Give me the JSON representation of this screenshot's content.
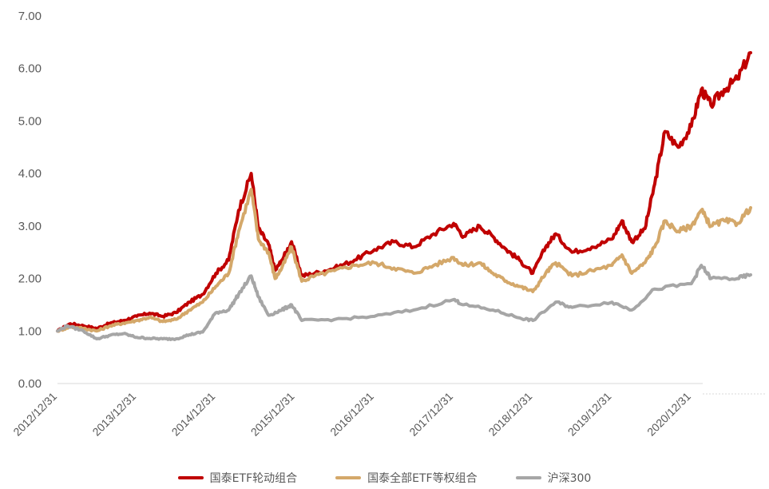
{
  "chart_data": {
    "type": "line",
    "yticks": [
      "0.00",
      "1.00",
      "2.00",
      "3.00",
      "4.00",
      "5.00",
      "6.00",
      "7.00"
    ],
    "ylim": [
      0,
      7
    ],
    "xticks": [
      "2012/12/31",
      "2013/12/31",
      "2014/12/31",
      "2015/12/31",
      "2016/12/31",
      "2017/12/31",
      "2018/12/31",
      "2019/12/31",
      "2020/12/31"
    ],
    "xlim": [
      "2012/12/31",
      "2021/09/30"
    ],
    "grid": false,
    "legend_position": "bottom",
    "series": [
      {
        "name": "国泰ETF轮动组合",
        "color": "#c00000",
        "points": [
          [
            "2012/12/31",
            1.0
          ],
          [
            "2013/02/28",
            1.14
          ],
          [
            "2013/04/30",
            1.1
          ],
          [
            "2013/06/30",
            1.05
          ],
          [
            "2013/08/31",
            1.15
          ],
          [
            "2013/10/31",
            1.2
          ],
          [
            "2013/12/31",
            1.28
          ],
          [
            "2014/02/28",
            1.34
          ],
          [
            "2014/04/30",
            1.28
          ],
          [
            "2014/06/30",
            1.35
          ],
          [
            "2014/08/31",
            1.55
          ],
          [
            "2014/10/31",
            1.7
          ],
          [
            "2014/12/31",
            2.1
          ],
          [
            "2015/02/28",
            2.35
          ],
          [
            "2015/04/15",
            3.3
          ],
          [
            "2015/06/12",
            4.0
          ],
          [
            "2015/07/15",
            2.95
          ],
          [
            "2015/08/31",
            2.65
          ],
          [
            "2015/09/30",
            2.15
          ],
          [
            "2015/10/31",
            2.35
          ],
          [
            "2015/12/15",
            2.7
          ],
          [
            "2016/01/31",
            2.05
          ],
          [
            "2016/03/31",
            2.1
          ],
          [
            "2016/06/30",
            2.2
          ],
          [
            "2016/09/30",
            2.35
          ],
          [
            "2016/12/31",
            2.55
          ],
          [
            "2017/03/31",
            2.7
          ],
          [
            "2017/06/30",
            2.6
          ],
          [
            "2017/09/30",
            2.85
          ],
          [
            "2017/12/31",
            3.05
          ],
          [
            "2018/02/15",
            2.8
          ],
          [
            "2018/04/30",
            3.0
          ],
          [
            "2018/06/30",
            2.8
          ],
          [
            "2018/08/31",
            2.55
          ],
          [
            "2018/10/31",
            2.35
          ],
          [
            "2018/12/31",
            2.1
          ],
          [
            "2019/02/28",
            2.6
          ],
          [
            "2019/04/15",
            2.85
          ],
          [
            "2019/06/30",
            2.5
          ],
          [
            "2019/09/30",
            2.6
          ],
          [
            "2019/12/31",
            2.75
          ],
          [
            "2020/02/15",
            3.1
          ],
          [
            "2020/03/31",
            2.7
          ],
          [
            "2020/05/31",
            2.95
          ],
          [
            "2020/07/15",
            3.8
          ],
          [
            "2020/08/31",
            4.8
          ],
          [
            "2020/10/31",
            4.5
          ],
          [
            "2020/12/31",
            4.9
          ],
          [
            "2021/02/15",
            5.6
          ],
          [
            "2021/03/31",
            5.3
          ],
          [
            "2021/05/31",
            5.6
          ],
          [
            "2021/07/31",
            5.8
          ],
          [
            "2021/09/30",
            6.3
          ]
        ]
      },
      {
        "name": "国泰全部ETF等权组合",
        "color": "#d4a86a",
        "points": [
          [
            "2012/12/31",
            1.0
          ],
          [
            "2013/02/28",
            1.08
          ],
          [
            "2013/04/30",
            1.05
          ],
          [
            "2013/06/30",
            1.0
          ],
          [
            "2013/08/31",
            1.1
          ],
          [
            "2013/10/31",
            1.15
          ],
          [
            "2013/12/31",
            1.2
          ],
          [
            "2014/02/28",
            1.26
          ],
          [
            "2014/04/30",
            1.18
          ],
          [
            "2014/06/30",
            1.22
          ],
          [
            "2014/08/31",
            1.4
          ],
          [
            "2014/10/31",
            1.55
          ],
          [
            "2014/12/31",
            1.85
          ],
          [
            "2015/02/28",
            2.1
          ],
          [
            "2015/04/15",
            2.9
          ],
          [
            "2015/06/12",
            3.7
          ],
          [
            "2015/07/15",
            2.75
          ],
          [
            "2015/08/31",
            2.5
          ],
          [
            "2015/09/30",
            2.0
          ],
          [
            "2015/10/31",
            2.2
          ],
          [
            "2015/12/15",
            2.6
          ],
          [
            "2016/01/31",
            1.95
          ],
          [
            "2016/03/31",
            2.05
          ],
          [
            "2016/06/30",
            2.15
          ],
          [
            "2016/09/30",
            2.25
          ],
          [
            "2016/12/31",
            2.3
          ],
          [
            "2017/03/31",
            2.2
          ],
          [
            "2017/06/30",
            2.1
          ],
          [
            "2017/09/30",
            2.25
          ],
          [
            "2017/12/31",
            2.4
          ],
          [
            "2018/02/15",
            2.25
          ],
          [
            "2018/04/30",
            2.3
          ],
          [
            "2018/06/30",
            2.1
          ],
          [
            "2018/08/31",
            1.95
          ],
          [
            "2018/10/31",
            1.85
          ],
          [
            "2018/12/31",
            1.75
          ],
          [
            "2019/02/28",
            2.1
          ],
          [
            "2019/04/15",
            2.3
          ],
          [
            "2019/06/30",
            2.05
          ],
          [
            "2019/09/30",
            2.15
          ],
          [
            "2019/12/31",
            2.25
          ],
          [
            "2020/02/15",
            2.45
          ],
          [
            "2020/03/31",
            2.1
          ],
          [
            "2020/05/31",
            2.3
          ],
          [
            "2020/07/15",
            2.6
          ],
          [
            "2020/08/31",
            3.1
          ],
          [
            "2020/10/31",
            2.9
          ],
          [
            "2020/12/31",
            3.0
          ],
          [
            "2021/02/15",
            3.3
          ],
          [
            "2021/03/31",
            3.0
          ],
          [
            "2021/05/31",
            3.1
          ],
          [
            "2021/07/31",
            3.05
          ],
          [
            "2021/09/30",
            3.35
          ]
        ]
      },
      {
        "name": "沪深300",
        "color": "#a6a6a6",
        "points": [
          [
            "2012/12/31",
            1.0
          ],
          [
            "2013/02/15",
            1.1
          ],
          [
            "2013/04/30",
            1.0
          ],
          [
            "2013/06/30",
            0.85
          ],
          [
            "2013/08/31",
            0.92
          ],
          [
            "2013/10/31",
            0.95
          ],
          [
            "2013/12/31",
            0.88
          ],
          [
            "2014/02/28",
            0.86
          ],
          [
            "2014/04/30",
            0.85
          ],
          [
            "2014/06/30",
            0.85
          ],
          [
            "2014/08/31",
            0.93
          ],
          [
            "2014/10/31",
            0.98
          ],
          [
            "2014/12/31",
            1.35
          ],
          [
            "2015/02/28",
            1.4
          ],
          [
            "2015/04/15",
            1.7
          ],
          [
            "2015/06/12",
            2.05
          ],
          [
            "2015/07/15",
            1.65
          ],
          [
            "2015/08/31",
            1.3
          ],
          [
            "2015/10/31",
            1.4
          ],
          [
            "2015/12/15",
            1.5
          ],
          [
            "2016/01/31",
            1.2
          ],
          [
            "2016/06/30",
            1.22
          ],
          [
            "2016/12/31",
            1.28
          ],
          [
            "2017/06/30",
            1.4
          ],
          [
            "2017/12/31",
            1.6
          ],
          [
            "2018/02/15",
            1.5
          ],
          [
            "2018/06/30",
            1.4
          ],
          [
            "2018/10/31",
            1.25
          ],
          [
            "2018/12/31",
            1.2
          ],
          [
            "2019/04/15",
            1.55
          ],
          [
            "2019/06/30",
            1.45
          ],
          [
            "2019/12/31",
            1.55
          ],
          [
            "2020/03/31",
            1.4
          ],
          [
            "2020/07/15",
            1.8
          ],
          [
            "2020/12/31",
            1.9
          ],
          [
            "2021/02/15",
            2.25
          ],
          [
            "2021/03/31",
            2.0
          ],
          [
            "2021/07/31",
            2.0
          ],
          [
            "2021/09/30",
            2.07
          ]
        ]
      }
    ]
  }
}
